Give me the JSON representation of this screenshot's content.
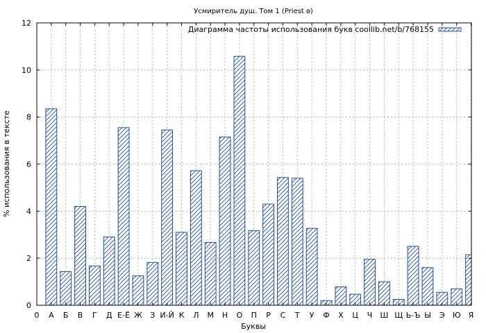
{
  "chart_data": {
    "type": "bar",
    "title": "Усмиритель душ. Том 1 (Priest 𐍈)",
    "xlabel": "Буквы",
    "ylabel": "% использования в тексте",
    "ylim": [
      0,
      12
    ],
    "yticks": [
      0,
      2,
      4,
      6,
      8,
      10,
      12
    ],
    "x_start_label": "0",
    "grid": true,
    "legend_position": "top-right",
    "series": [
      {
        "name": "Диаграмма частоты использования букв coollib.net/b/768155",
        "color": "#1f4fa0"
      }
    ],
    "categories": [
      "А",
      "Б",
      "В",
      "Г",
      "Д",
      "Е-Ё",
      "Ж",
      "З",
      "И-Й",
      "К",
      "Л",
      "М",
      "Н",
      "О",
      "П",
      "Р",
      "С",
      "Т",
      "У",
      "Ф",
      "Х",
      "Ц",
      "Ч",
      "Ш",
      "Щ",
      "Ь-Ъ",
      "Ы",
      "Э",
      "Ю",
      "Я"
    ],
    "values": [
      8.35,
      1.43,
      4.2,
      1.67,
      2.9,
      7.55,
      1.25,
      1.82,
      7.45,
      3.1,
      5.72,
      2.67,
      7.15,
      10.58,
      3.17,
      4.3,
      5.43,
      5.4,
      3.27,
      0.2,
      0.78,
      0.47,
      1.95,
      1.0,
      0.25,
      2.5,
      1.6,
      0.55,
      0.7,
      2.15
    ]
  }
}
